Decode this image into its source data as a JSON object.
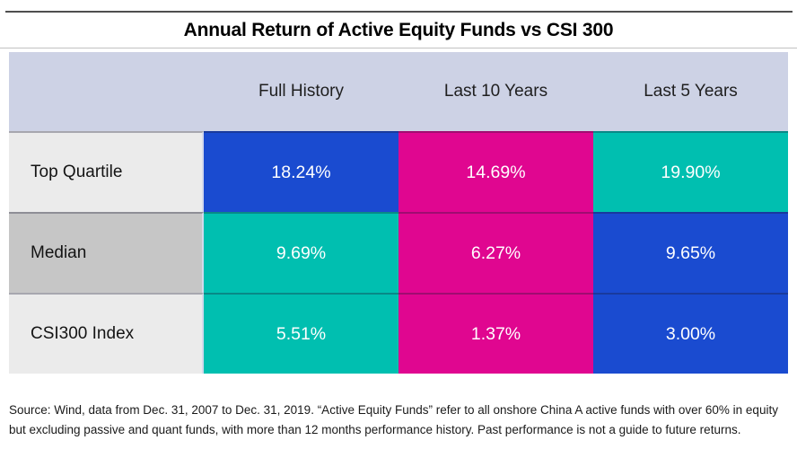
{
  "title": "Annual Return of Active Equity Funds vs CSI 300",
  "palette": {
    "blue": "#1a4bd0",
    "magenta": "#e00690",
    "teal": "#00bfb0",
    "header_bg": "#cdd2e5",
    "label_light": "#ebebeb",
    "label_mid": "#c6c6c6"
  },
  "chart_data": {
    "type": "table",
    "title": "Annual Return of Active Equity Funds vs CSI 300",
    "columns": [
      "Full History",
      "Last 10 Years",
      "Last 5 Years"
    ],
    "rows": [
      {
        "label": "Top Quartile",
        "values": [
          "18.24%",
          "14.69%",
          "19.90%"
        ],
        "values_numeric": [
          18.24,
          14.69,
          19.9
        ],
        "cell_colors": [
          "blue",
          "magenta",
          "teal"
        ]
      },
      {
        "label": "Median",
        "values": [
          "9.69%",
          "6.27%",
          "9.65%"
        ],
        "values_numeric": [
          9.69,
          6.27,
          9.65
        ],
        "cell_colors": [
          "teal",
          "magenta",
          "blue"
        ]
      },
      {
        "label": "CSI300 Index",
        "values": [
          "5.51%",
          "1.37%",
          "3.00%"
        ],
        "values_numeric": [
          5.51,
          1.37,
          3.0
        ],
        "cell_colors": [
          "teal",
          "magenta",
          "blue"
        ]
      }
    ]
  },
  "footnote": {
    "line1": "Source: Wind, data from Dec. 31, 2007 to Dec. 31, 2019. “Active Equity Funds” refer to all onshore China A active funds with over 60% in equity",
    "line2": "but excluding passive and quant funds, with more than 12 months performance history. Past performance is not a guide to future returns."
  }
}
